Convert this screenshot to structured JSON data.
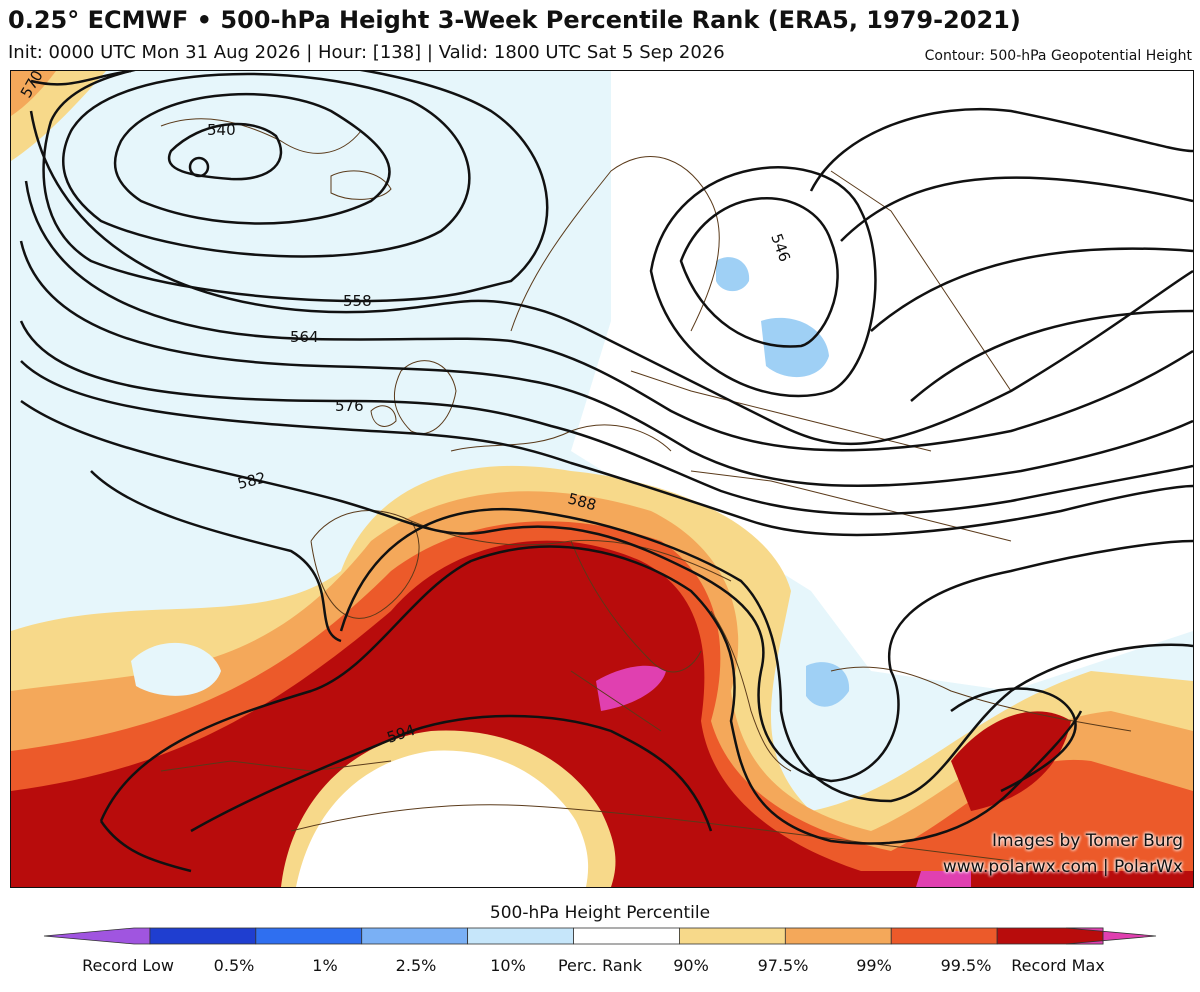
{
  "header": {
    "title": "0.25° ECMWF • 500-hPa Height 3-Week Percentile Rank (ERA5, 1979-2021)",
    "subtitle": "Init: 0000 UTC Mon 31 Aug 2026 | Hour: [138] | Valid: 1800 UTC Sat 5 Sep 2026",
    "contour_note": "Contour: 500-hPa Geopotential Height"
  },
  "map": {
    "contour_labels": [
      "570",
      "540",
      "546",
      "558",
      "564",
      "576",
      "582",
      "588",
      "594"
    ]
  },
  "credits": {
    "line1": "Images by Tomer Burg",
    "line2": "www.polarwx.com | PolarWx"
  },
  "legend": {
    "title": "500-hPa Height Percentile",
    "labels": [
      "Record Low",
      "0.5%",
      "1%",
      "2.5%",
      "10%",
      "Perc. Rank",
      "90%",
      "97.5%",
      "99%",
      "99.5%",
      "Record Max"
    ],
    "colors": [
      "#a055e0",
      "#1f3ed0",
      "#2f6ff0",
      "#7ab0f5",
      "#c6e6fa",
      "#ffffff",
      "#f7d98a",
      "#f4a85a",
      "#ec5a2a",
      "#b80c0c",
      "#e040b0"
    ]
  }
}
